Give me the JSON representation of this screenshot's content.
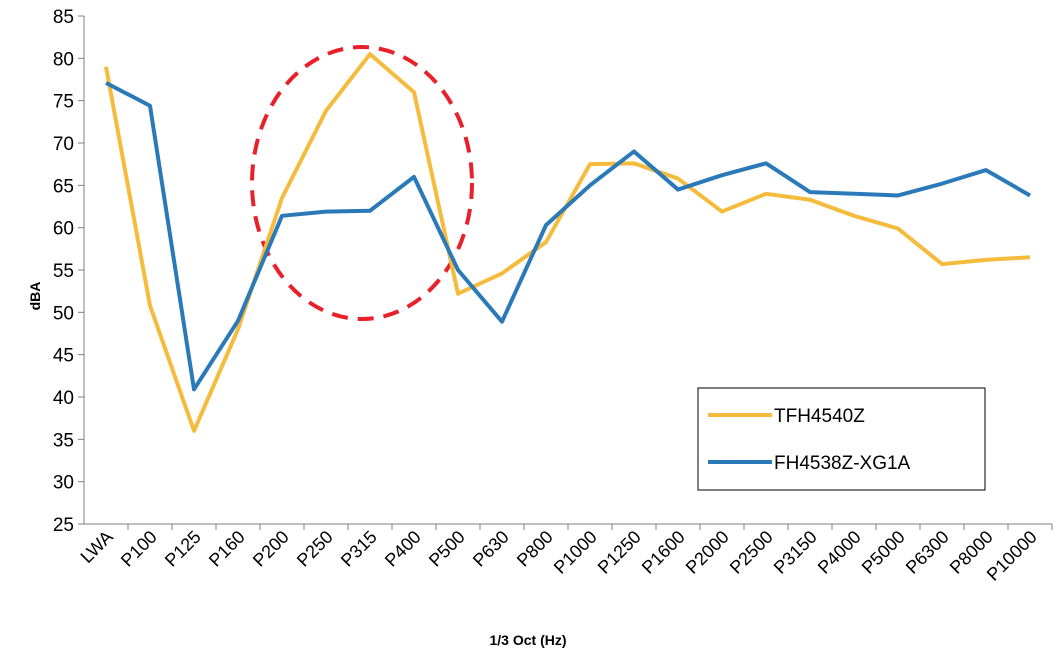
{
  "chart_data": {
    "type": "line",
    "x_label": "1/3 Oct (Hz)",
    "y_label": "dBA",
    "categories": [
      "LWA",
      "P100",
      "P125",
      "P160",
      "P200",
      "P250",
      "P315",
      "P400",
      "P500",
      "P630",
      "P800",
      "P1000",
      "P1250",
      "P1600",
      "P2000",
      "P2500",
      "P3150",
      "P4000",
      "P5000",
      "P6300",
      "P8000",
      "P10000"
    ],
    "series": [
      {
        "name": "TFH4540Z",
        "color": "#f5bb3c",
        "values": [
          79,
          50.8,
          36,
          48,
          63.5,
          73.8,
          80.5,
          76,
          52.2,
          54.6,
          58.3,
          67.5,
          67.6,
          65.8,
          61.9,
          64,
          63.3,
          61.4,
          59.9,
          55.7,
          56.2,
          56.5
        ]
      },
      {
        "name": "FH4538Z-XG1A",
        "color": "#2a7ab9",
        "values": [
          77.1,
          74.4,
          40.9,
          49,
          61.4,
          61.9,
          62,
          66,
          55,
          48.9,
          60.3,
          65,
          69,
          64.5,
          66.2,
          67.6,
          64.2,
          64,
          63.8,
          65.2,
          66.8,
          63.8
        ]
      }
    ],
    "ylim": [
      25,
      85
    ],
    "yticks": [
      25,
      30,
      35,
      40,
      45,
      50,
      55,
      60,
      65,
      70,
      75,
      80,
      85
    ],
    "grid": false,
    "legend": "lower right"
  }
}
